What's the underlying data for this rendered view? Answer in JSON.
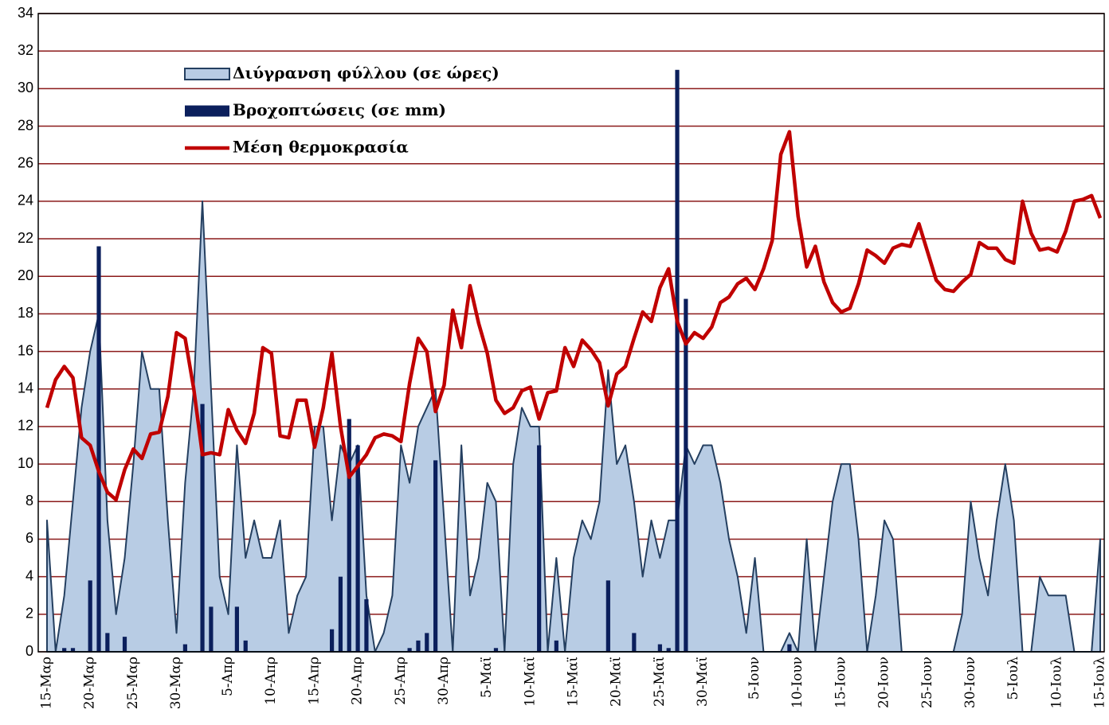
{
  "chart_data": {
    "type": "combo",
    "legend": "upper left",
    "grid": true,
    "grid_color": "#8b1a1a",
    "ylim": [
      0,
      34
    ],
    "yticks": [
      0,
      2,
      4,
      6,
      8,
      10,
      12,
      14,
      16,
      18,
      20,
      22,
      24,
      26,
      28,
      30,
      32,
      34
    ],
    "categories": [
      "15-Μαρ",
      null,
      null,
      null,
      null,
      "20-Μαρ",
      null,
      null,
      null,
      null,
      "25-Μαρ",
      null,
      null,
      null,
      null,
      "30-Μαρ",
      null,
      null,
      null,
      null,
      null,
      "5-Απρ",
      null,
      null,
      null,
      null,
      "10-Απρ",
      null,
      null,
      null,
      null,
      "15-Απρ",
      null,
      null,
      null,
      null,
      "20-Απρ",
      null,
      null,
      null,
      null,
      "25-Απρ",
      null,
      null,
      null,
      null,
      "30-Απρ",
      null,
      null,
      null,
      null,
      "5-Μαϊ",
      null,
      null,
      null,
      null,
      "10-Μαϊ",
      null,
      null,
      null,
      null,
      "15-Μαϊ",
      null,
      null,
      null,
      null,
      "20-Μαϊ",
      null,
      null,
      null,
      null,
      "25-Μαϊ",
      null,
      null,
      null,
      null,
      "30-Μαϊ",
      null,
      null,
      null,
      null,
      null,
      "5-Ιουν",
      null,
      null,
      null,
      null,
      "10-Ιουν",
      null,
      null,
      null,
      null,
      "15-Ιουν",
      null,
      null,
      null,
      null,
      "20-Ιουν",
      null,
      null,
      null,
      null,
      "25-Ιουν",
      null,
      null,
      null,
      null,
      "30-Ιουν",
      null,
      null,
      null,
      null,
      "5-Ιουλ",
      null,
      null,
      null,
      null,
      "10-Ιουλ",
      null,
      null,
      null,
      null,
      "15-Ιουλ"
    ],
    "series": [
      {
        "name": "Διύγρανση φύλλου (σε ώρες)",
        "type": "area",
        "color": "#b8cce4",
        "stroke": "#243f60",
        "values": [
          7,
          0,
          3,
          8,
          13,
          16,
          18,
          7,
          2,
          5,
          10,
          16,
          14,
          14,
          7,
          1,
          9,
          14,
          24,
          14,
          4,
          2,
          11,
          5,
          7,
          5,
          5,
          7,
          1,
          3,
          4,
          12,
          12,
          7,
          11,
          10,
          11,
          3,
          0,
          1,
          3,
          11,
          9,
          12,
          13,
          14,
          7,
          0,
          11,
          3,
          5,
          9,
          8,
          0,
          10,
          13,
          12,
          12,
          0,
          5,
          0,
          5,
          7,
          6,
          8,
          15,
          10,
          11,
          8,
          4,
          7,
          5,
          7,
          7,
          11,
          10,
          11,
          11,
          9,
          6,
          4,
          1,
          5,
          0,
          0,
          0,
          1,
          0,
          6,
          0,
          4,
          8,
          10,
          10,
          6,
          0,
          3,
          7,
          6,
          0,
          0,
          0,
          0,
          0,
          0,
          0,
          2,
          8,
          5,
          3,
          7,
          10,
          7,
          0,
          0,
          4,
          3,
          3,
          3,
          0,
          0,
          0,
          6
        ]
      },
      {
        "name": "Βροχοπτώσεις (σε mm)",
        "type": "bar",
        "color": "#0b1f5c",
        "values": [
          0,
          0,
          0.2,
          0.2,
          0,
          3.8,
          21.6,
          1,
          0,
          0.8,
          0,
          0,
          0,
          0,
          0,
          0,
          0.4,
          0,
          13.2,
          2.4,
          0,
          0,
          2.4,
          0.6,
          0,
          0,
          0,
          0,
          0,
          0,
          0,
          0,
          0,
          1.2,
          4,
          12.4,
          11,
          2.8,
          0,
          0,
          0,
          0,
          0.2,
          0.6,
          1,
          10.2,
          0,
          0,
          0,
          0,
          0,
          0,
          0.2,
          0,
          0,
          0,
          0,
          11,
          0,
          0.6,
          0,
          0,
          0,
          0,
          0,
          3.8,
          0,
          0,
          1,
          0,
          0,
          0.4,
          0.2,
          31,
          18.8,
          0,
          0,
          0,
          0,
          0,
          0,
          0,
          0,
          0,
          0,
          0,
          0.4,
          0,
          0,
          0,
          0,
          0,
          0,
          0,
          0,
          0,
          0,
          0,
          0,
          0,
          0,
          0,
          0,
          0,
          0,
          0,
          0,
          0,
          0,
          0,
          0,
          0,
          0,
          0,
          0,
          0,
          0,
          0,
          0,
          0,
          0,
          0,
          0
        ]
      },
      {
        "name": "Μέση θερμοκρασία",
        "type": "line",
        "color": "#c00000",
        "values": [
          13,
          14.5,
          15.2,
          14.6,
          11.4,
          11,
          9.6,
          8.5,
          8.1,
          9.7,
          10.8,
          10.3,
          11.6,
          11.7,
          13.6,
          17,
          16.7,
          14,
          10.5,
          10.6,
          10.5,
          12.9,
          11.8,
          11.1,
          12.7,
          16.2,
          15.9,
          11.5,
          11.4,
          13.4,
          13.4,
          10.9,
          13,
          15.9,
          12,
          9.3,
          9.9,
          10.5,
          11.4,
          11.6,
          11.5,
          11.2,
          14.3,
          16.7,
          16,
          12.8,
          14.2,
          18.2,
          16.2,
          19.5,
          17.5,
          15.9,
          13.4,
          12.7,
          13,
          13.9,
          14.1,
          12.4,
          13.8,
          13.9,
          16.2,
          15.2,
          16.6,
          16.1,
          15.4,
          13.1,
          14.8,
          15.2,
          16.7,
          18.1,
          17.6,
          19.4,
          20.4,
          17.6,
          16.4,
          17,
          16.7,
          17.3,
          18.6,
          18.9,
          19.6,
          19.9,
          19.3,
          20.4,
          21.9,
          26.5,
          27.7,
          23.2,
          20.5,
          21.6,
          19.7,
          18.6,
          18.1,
          18.3,
          19.6,
          21.4,
          21.1,
          20.7,
          21.5,
          21.7,
          21.6,
          22.8,
          21.3,
          19.8,
          19.3,
          19.2,
          19.7,
          20.1,
          21.8,
          21.5,
          21.5,
          20.9,
          20.7,
          24,
          22.3,
          21.4,
          21.5,
          21.3,
          22.4,
          24,
          24.1,
          24.3,
          23.1
        ]
      }
    ]
  }
}
